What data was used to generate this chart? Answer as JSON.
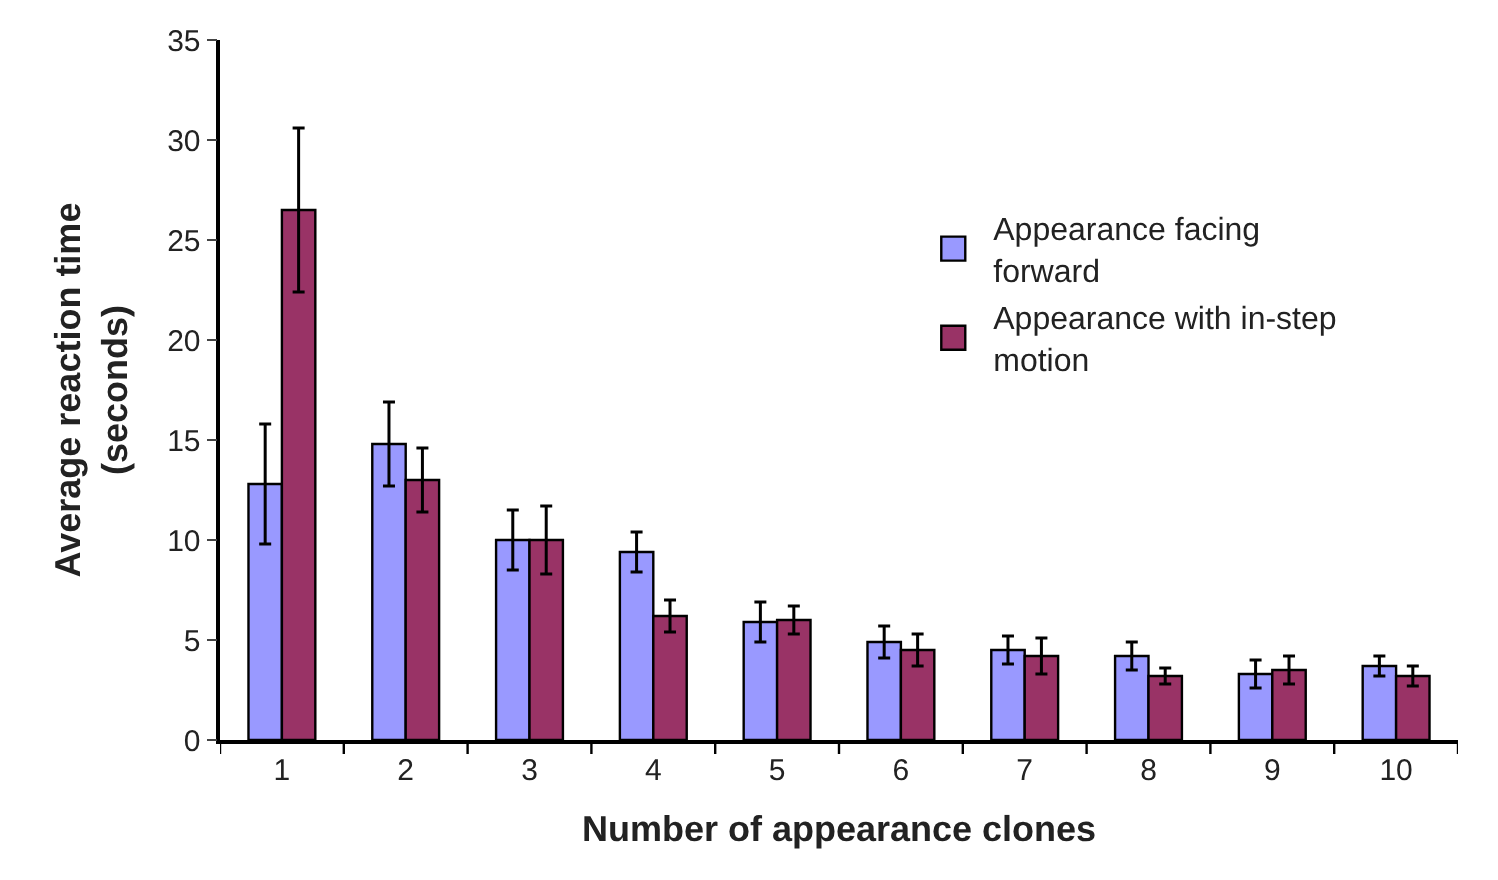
{
  "chart_data": {
    "type": "bar",
    "xlabel": "Number of appearance clones",
    "ylabel": "Average reaction time\n(seconds)",
    "categories": [
      "1",
      "2",
      "3",
      "4",
      "5",
      "6",
      "7",
      "8",
      "9",
      "10"
    ],
    "series": [
      {
        "name": "Appearance facing\nforward",
        "color": "#9999ff",
        "values": [
          12.8,
          14.8,
          10.0,
          9.4,
          5.9,
          4.9,
          4.5,
          4.2,
          3.3,
          3.7
        ],
        "errors": [
          3.0,
          2.1,
          1.5,
          1.0,
          1.0,
          0.8,
          0.7,
          0.7,
          0.7,
          0.5
        ]
      },
      {
        "name": "Appearance with in-step\nmotion",
        "color": "#993366",
        "values": [
          26.5,
          13.0,
          10.0,
          6.2,
          6.0,
          4.5,
          4.2,
          3.2,
          3.5,
          3.2
        ],
        "errors": [
          4.1,
          1.6,
          1.7,
          0.8,
          0.7,
          0.8,
          0.9,
          0.4,
          0.7,
          0.5
        ]
      }
    ],
    "ylim": [
      0,
      35
    ],
    "yticks": [
      0,
      5,
      10,
      15,
      20,
      25,
      30,
      35
    ],
    "legend": "top right"
  }
}
